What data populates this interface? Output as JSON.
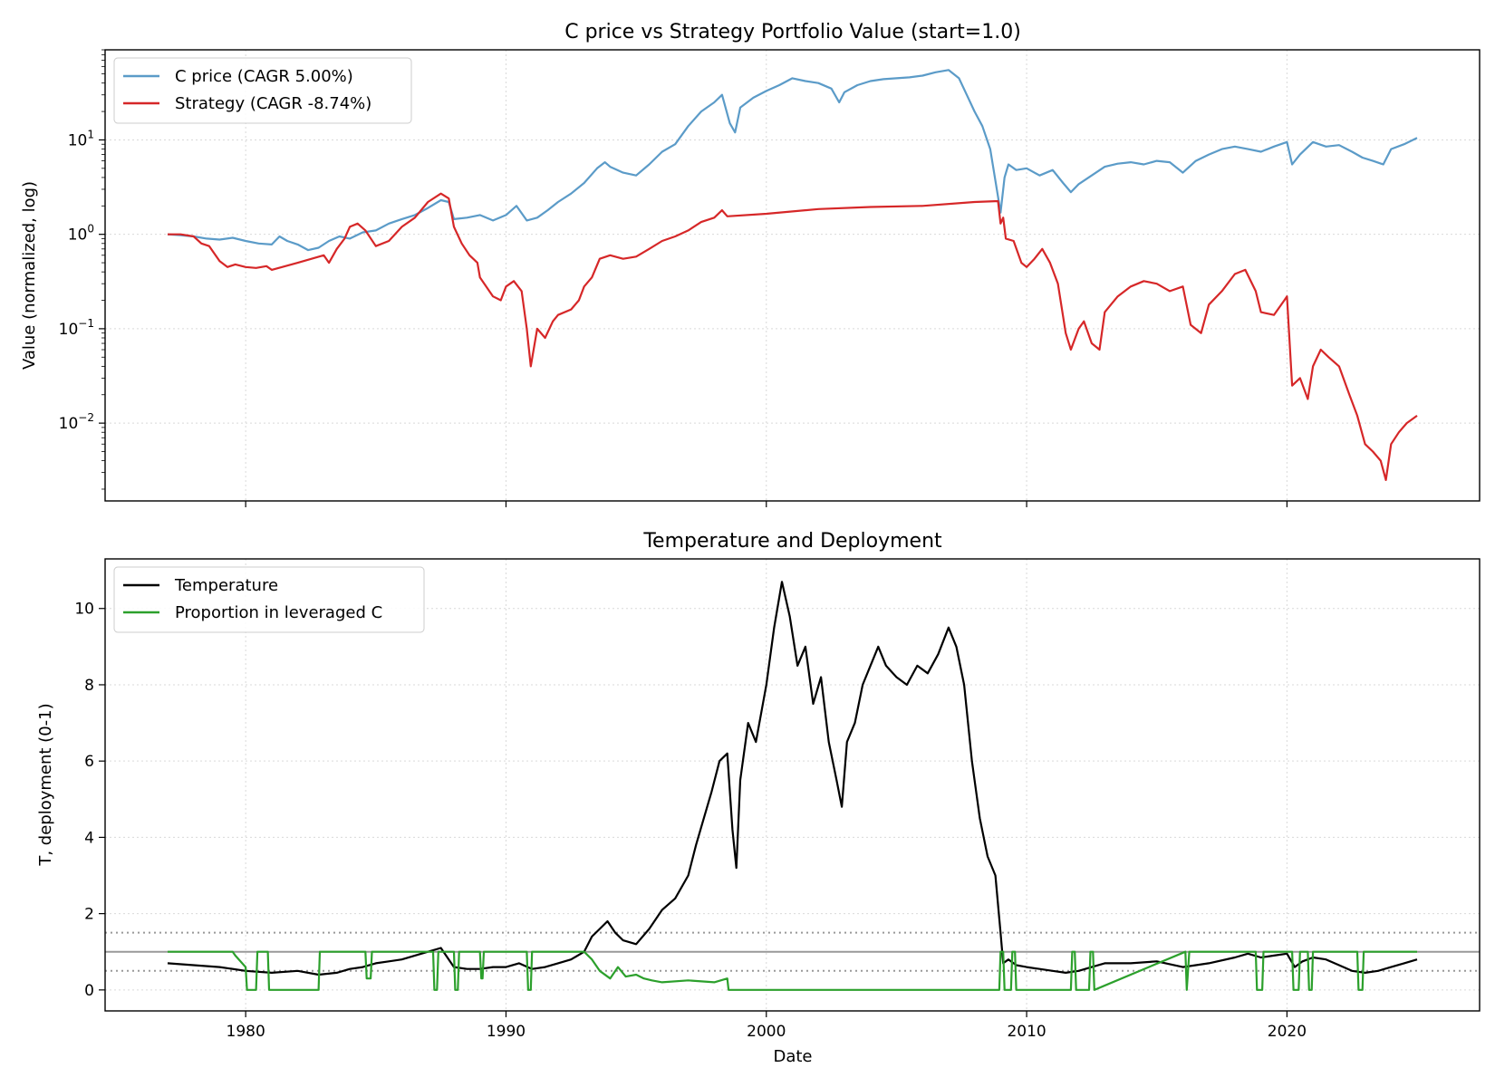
{
  "figure": {
    "xlabel": "Date"
  },
  "chart_data": [
    {
      "type": "line",
      "title": "C price vs Strategy Portfolio Value (start=1.0)",
      "xlabel": "",
      "ylabel": "Value (normalized, log)",
      "yscale": "log",
      "xlim": [
        1974.6,
        2027.4
      ],
      "ylim": [
        0.0015,
        90
      ],
      "x_ticks": [
        1980,
        1990,
        2000,
        2010,
        2020
      ],
      "y_ticks": [
        {
          "value": 0.01,
          "mantissa": "10",
          "exp": "−2"
        },
        {
          "value": 0.1,
          "mantissa": "10",
          "exp": "−1"
        },
        {
          "value": 1,
          "mantissa": "10",
          "exp": "0"
        },
        {
          "value": 10,
          "mantissa": "10",
          "exp": "1"
        }
      ],
      "grid": true,
      "legend_position": "top-left",
      "series": [
        {
          "name": "C price (CAGR 5.00%)",
          "color": "#5b9bc8",
          "x": [
            1977.0,
            1977.5,
            1978.0,
            1978.5,
            1979.0,
            1979.5,
            1980.0,
            1980.5,
            1981.0,
            1981.3,
            1981.6,
            1982.0,
            1982.4,
            1982.8,
            1983.2,
            1983.6,
            1984.0,
            1984.5,
            1985.0,
            1985.5,
            1986.0,
            1986.5,
            1987.0,
            1987.5,
            1987.8,
            1988.0,
            1988.5,
            1989.0,
            1989.5,
            1990.0,
            1990.4,
            1990.8,
            1991.2,
            1991.6,
            1992.0,
            1992.5,
            1993.0,
            1993.5,
            1993.8,
            1994.0,
            1994.5,
            1995.0,
            1995.5,
            1996.0,
            1996.5,
            1997.0,
            1997.5,
            1998.0,
            1998.3,
            1998.6,
            1998.8,
            1999.0,
            1999.5,
            2000.0,
            2000.5,
            2001.0,
            2001.5,
            2002.0,
            2002.5,
            2002.8,
            2003.0,
            2003.5,
            2004.0,
            2004.5,
            2005.0,
            2005.5,
            2006.0,
            2006.5,
            2007.0,
            2007.4,
            2007.7,
            2008.0,
            2008.3,
            2008.6,
            2008.9,
            2009.0,
            2009.15,
            2009.3,
            2009.6,
            2010.0,
            2010.5,
            2011.0,
            2011.4,
            2011.7,
            2012.0,
            2012.5,
            2013.0,
            2013.5,
            2014.0,
            2014.5,
            2015.0,
            2015.5,
            2016.0,
            2016.5,
            2017.0,
            2017.5,
            2018.0,
            2018.5,
            2019.0,
            2019.5,
            2020.0,
            2020.2,
            2020.5,
            2021.0,
            2021.5,
            2022.0,
            2022.5,
            2022.9,
            2023.3,
            2023.7,
            2024.0,
            2024.5,
            2025.0
          ],
          "values": [
            1.0,
            0.98,
            0.95,
            0.9,
            0.88,
            0.92,
            0.85,
            0.8,
            0.78,
            0.95,
            0.85,
            0.78,
            0.68,
            0.72,
            0.85,
            0.95,
            0.9,
            1.05,
            1.1,
            1.3,
            1.45,
            1.6,
            1.9,
            2.3,
            2.2,
            1.45,
            1.5,
            1.6,
            1.4,
            1.6,
            2.0,
            1.4,
            1.5,
            1.8,
            2.2,
            2.7,
            3.5,
            5.0,
            5.8,
            5.2,
            4.5,
            4.2,
            5.5,
            7.5,
            9.0,
            14.0,
            20.0,
            25.0,
            30.0,
            15.0,
            12.0,
            22.0,
            28.0,
            33.0,
            38.0,
            45.0,
            42.0,
            40.0,
            35.0,
            25.0,
            32.0,
            38.0,
            42.0,
            44.0,
            45.0,
            46.0,
            48.0,
            52.0,
            55.0,
            45.0,
            30.0,
            20.0,
            14.0,
            8.0,
            2.5,
            1.7,
            4.0,
            5.5,
            4.8,
            5.0,
            4.2,
            4.8,
            3.5,
            2.8,
            3.4,
            4.2,
            5.2,
            5.6,
            5.8,
            5.5,
            6.0,
            5.8,
            4.5,
            6.0,
            7.0,
            8.0,
            8.5,
            8.0,
            7.5,
            8.5,
            9.5,
            5.5,
            7.0,
            9.5,
            8.5,
            8.8,
            7.5,
            6.5,
            6.0,
            5.5,
            8.0,
            9.0,
            10.5
          ]
        },
        {
          "name": "Strategy (CAGR -8.74%)",
          "color": "#d62728",
          "x": [
            1977.0,
            1977.5,
            1978.0,
            1978.3,
            1978.6,
            1979.0,
            1979.3,
            1979.6,
            1980.0,
            1980.4,
            1980.8,
            1981.0,
            1982.0,
            1983.0,
            1983.2,
            1983.5,
            1983.8,
            1984.0,
            1984.3,
            1984.6,
            1985.0,
            1985.5,
            1986.0,
            1986.5,
            1987.0,
            1987.5,
            1987.8,
            1988.0,
            1988.3,
            1988.6,
            1988.9,
            1989.0,
            1989.5,
            1989.8,
            1990.0,
            1990.3,
            1990.6,
            1990.8,
            1990.95,
            1991.2,
            1991.5,
            1991.8,
            1992.0,
            1992.5,
            1992.8,
            1993.0,
            1993.3,
            1993.6,
            1994.0,
            1994.5,
            1995.0,
            1995.5,
            1996.0,
            1996.5,
            1997.0,
            1997.5,
            1998.0,
            1998.3,
            1998.5,
            2000.0,
            2002.0,
            2004.0,
            2006.0,
            2008.0,
            2008.9,
            2009.0,
            2009.1,
            2009.2,
            2009.5,
            2009.8,
            2010.0,
            2010.3,
            2010.6,
            2010.9,
            2011.2,
            2011.5,
            2011.7,
            2012.0,
            2012.2,
            2012.5,
            2012.8,
            2013.0,
            2013.5,
            2014.0,
            2014.5,
            2015.0,
            2015.5,
            2016.0,
            2016.3,
            2016.7,
            2017.0,
            2017.5,
            2018.0,
            2018.4,
            2018.8,
            2019.0,
            2019.5,
            2019.9,
            2020.0,
            2020.2,
            2020.5,
            2020.8,
            2021.0,
            2021.3,
            2021.6,
            2022.0,
            2022.4,
            2022.7,
            2023.0,
            2023.3,
            2023.6,
            2023.8,
            2024.0,
            2024.3,
            2024.6,
            2025.0
          ],
          "values": [
            1.0,
            1.0,
            0.95,
            0.8,
            0.75,
            0.52,
            0.45,
            0.48,
            0.45,
            0.44,
            0.46,
            0.42,
            0.5,
            0.6,
            0.5,
            0.7,
            0.9,
            1.2,
            1.3,
            1.1,
            0.75,
            0.85,
            1.2,
            1.5,
            2.2,
            2.7,
            2.4,
            1.2,
            0.8,
            0.6,
            0.5,
            0.35,
            0.22,
            0.2,
            0.28,
            0.32,
            0.25,
            0.1,
            0.04,
            0.1,
            0.08,
            0.12,
            0.14,
            0.16,
            0.2,
            0.28,
            0.35,
            0.55,
            0.6,
            0.55,
            0.58,
            0.7,
            0.85,
            0.95,
            1.1,
            1.35,
            1.5,
            1.8,
            1.55,
            1.65,
            1.85,
            1.95,
            2.0,
            2.2,
            2.25,
            1.3,
            1.5,
            0.9,
            0.85,
            0.5,
            0.45,
            0.55,
            0.7,
            0.5,
            0.3,
            0.09,
            0.06,
            0.1,
            0.12,
            0.07,
            0.06,
            0.15,
            0.22,
            0.28,
            0.32,
            0.3,
            0.25,
            0.28,
            0.11,
            0.09,
            0.18,
            0.25,
            0.38,
            0.42,
            0.25,
            0.15,
            0.14,
            0.2,
            0.22,
            0.025,
            0.03,
            0.018,
            0.04,
            0.06,
            0.05,
            0.04,
            0.02,
            0.012,
            0.006,
            0.005,
            0.004,
            0.0025,
            0.006,
            0.008,
            0.01,
            0.012
          ]
        }
      ]
    },
    {
      "type": "line",
      "title": "Temperature and Deployment",
      "xlabel": "Date",
      "ylabel": "T, deployment (0-1)",
      "xlim": [
        1974.6,
        2027.4
      ],
      "ylim": [
        -0.55,
        11.3
      ],
      "x_ticks": [
        1980,
        1990,
        2000,
        2010,
        2020
      ],
      "y_ticks": [
        0,
        2,
        4,
        6,
        8,
        10
      ],
      "grid": true,
      "legend_position": "top-left",
      "reference_lines": [
        {
          "y": 1.0,
          "color": "#999999",
          "style": "solid"
        },
        {
          "y": 1.5,
          "color": "#999999",
          "style": "dotted"
        },
        {
          "y": 0.5,
          "color": "#999999",
          "style": "dotted"
        }
      ],
      "series": [
        {
          "name": "Temperature",
          "color": "#000000",
          "x": [
            1977.0,
            1978.0,
            1979.0,
            1980.0,
            1981.0,
            1982.0,
            1982.8,
            1983.5,
            1984.0,
            1984.5,
            1985.0,
            1985.5,
            1986.0,
            1986.5,
            1987.0,
            1987.5,
            1988.0,
            1988.5,
            1989.0,
            1989.5,
            1990.0,
            1990.5,
            1991.0,
            1991.5,
            1992.0,
            1992.5,
            1993.0,
            1993.3,
            1993.6,
            1993.9,
            1994.2,
            1994.5,
            1995.0,
            1995.5,
            1996.0,
            1996.5,
            1997.0,
            1997.3,
            1997.6,
            1997.9,
            1998.2,
            1998.5,
            1998.7,
            1998.85,
            1999.0,
            1999.3,
            1999.6,
            2000.0,
            2000.3,
            2000.6,
            2000.9,
            2001.2,
            2001.5,
            2001.8,
            2002.1,
            2002.4,
            2002.7,
            2002.9,
            2003.1,
            2003.4,
            2003.7,
            2004.0,
            2004.3,
            2004.6,
            2005.0,
            2005.4,
            2005.8,
            2006.2,
            2006.6,
            2007.0,
            2007.3,
            2007.6,
            2007.9,
            2008.2,
            2008.5,
            2008.8,
            2009.0,
            2009.1,
            2009.3,
            2009.6,
            2010.0,
            2010.5,
            2011.0,
            2011.5,
            2012.0,
            2012.5,
            2013.0,
            2014.0,
            2015.0,
            2016.0,
            2017.0,
            2018.0,
            2018.5,
            2019.0,
            2019.5,
            2020.0,
            2020.3,
            2020.6,
            2021.0,
            2021.5,
            2022.0,
            2022.5,
            2023.0,
            2023.5,
            2024.0,
            2024.5,
            2025.0
          ],
          "values": [
            0.7,
            0.65,
            0.6,
            0.5,
            0.45,
            0.5,
            0.4,
            0.45,
            0.55,
            0.6,
            0.7,
            0.75,
            0.8,
            0.9,
            1.0,
            1.1,
            0.6,
            0.55,
            0.55,
            0.6,
            0.6,
            0.7,
            0.55,
            0.6,
            0.7,
            0.8,
            1.0,
            1.4,
            1.6,
            1.8,
            1.5,
            1.3,
            1.2,
            1.6,
            2.1,
            2.4,
            3.0,
            3.8,
            4.5,
            5.2,
            6.0,
            6.2,
            4.2,
            3.2,
            5.5,
            7.0,
            6.5,
            8.0,
            9.5,
            10.7,
            9.8,
            8.5,
            9.0,
            7.5,
            8.2,
            6.5,
            5.5,
            4.8,
            6.5,
            7.0,
            8.0,
            8.5,
            9.0,
            8.5,
            8.2,
            8.0,
            8.5,
            8.3,
            8.8,
            9.5,
            9.0,
            8.0,
            6.0,
            4.5,
            3.5,
            3.0,
            1.5,
            0.7,
            0.8,
            0.65,
            0.6,
            0.55,
            0.5,
            0.45,
            0.5,
            0.6,
            0.7,
            0.7,
            0.75,
            0.6,
            0.7,
            0.85,
            0.95,
            0.85,
            0.9,
            0.95,
            0.6,
            0.75,
            0.85,
            0.8,
            0.65,
            0.5,
            0.45,
            0.5,
            0.6,
            0.7,
            0.8
          ]
        },
        {
          "name": "Proportion in leveraged C",
          "color": "#2ca02c",
          "x": [
            1977.0,
            1979.5,
            1979.6,
            1980.0,
            1980.05,
            1980.4,
            1980.45,
            1980.85,
            1980.9,
            1982.8,
            1982.85,
            1984.6,
            1984.65,
            1984.8,
            1984.85,
            1987.2,
            1987.25,
            1987.35,
            1987.4,
            1988.0,
            1988.05,
            1988.15,
            1988.2,
            1989.0,
            1989.05,
            1989.1,
            1989.15,
            1990.8,
            1990.85,
            1990.95,
            1991.0,
            1993.0,
            1993.3,
            1993.6,
            1994.0,
            1994.3,
            1994.6,
            1995.0,
            1995.3,
            1995.6,
            1996.0,
            1997.0,
            1998.0,
            1998.5,
            1998.55,
            2008.95,
            2009.0,
            2009.1,
            2009.15,
            2009.4,
            2009.45,
            2009.55,
            2009.6,
            2011.7,
            2011.75,
            2011.85,
            2011.9,
            2012.4,
            2012.45,
            2012.55,
            2012.6,
            2016.1,
            2016.15,
            2016.25,
            2016.3,
            2018.8,
            2018.85,
            2019.05,
            2019.1,
            2020.2,
            2020.25,
            2020.45,
            2020.5,
            2020.8,
            2020.85,
            2020.95,
            2021.0,
            2022.7,
            2022.75,
            2022.9,
            2022.95,
            2025.0
          ],
          "values": [
            1.0,
            1.0,
            0.9,
            0.6,
            0.0,
            0.0,
            1.0,
            1.0,
            0.0,
            0.0,
            1.0,
            1.0,
            0.3,
            0.3,
            1.0,
            1.0,
            0.0,
            0.0,
            1.0,
            1.0,
            0.0,
            0.0,
            1.0,
            1.0,
            0.3,
            0.3,
            1.0,
            1.0,
            0.0,
            0.0,
            1.0,
            1.0,
            0.8,
            0.5,
            0.3,
            0.6,
            0.35,
            0.4,
            0.3,
            0.25,
            0.2,
            0.25,
            0.2,
            0.3,
            0.0,
            0.0,
            1.0,
            1.0,
            0.0,
            0.0,
            1.0,
            1.0,
            0.0,
            0.0,
            1.0,
            1.0,
            0.0,
            0.0,
            1.0,
            1.0,
            0.0,
            1.0,
            0.0,
            1.0,
            1.0,
            1.0,
            0.0,
            0.0,
            1.0,
            1.0,
            0.0,
            0.0,
            1.0,
            1.0,
            0.0,
            0.0,
            1.0,
            1.0,
            0.0,
            0.0,
            1.0,
            1.0
          ]
        }
      ]
    }
  ]
}
